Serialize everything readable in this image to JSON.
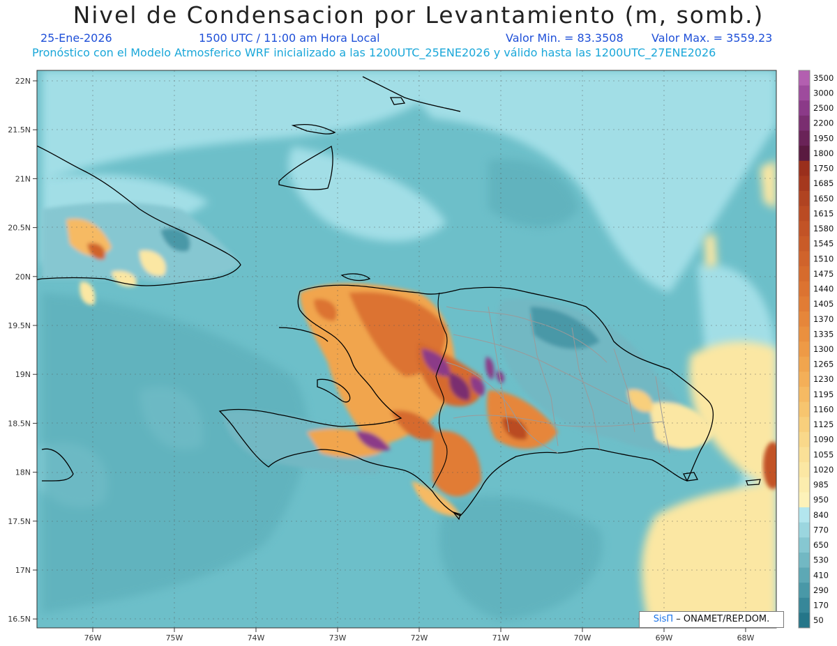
{
  "header": {
    "title": "Nivel de Condensacion por Levantamiento (m, somb.)",
    "date": "25-Ene-2026",
    "time": "1500 UTC / 11:00 am Hora Local",
    "min_value": "Valor Min. = 83.3508",
    "max_value": "Valor Max. = 3559.23",
    "forecast": "Pronóstico con el Modelo Atmosferico WRF inicializado a las 1200UTC_25ENE2026 y válido hasta las  1200UTC_27ENE2026"
  },
  "map": {
    "lat_ticks": [
      "22N",
      "21.5N",
      "21N",
      "20.5N",
      "20N",
      "19.5N",
      "19N",
      "18.5N",
      "18N",
      "17.5N",
      "17N",
      "16.5N"
    ],
    "lon_ticks": [
      "76W",
      "75W",
      "74W",
      "73W",
      "72W",
      "71W",
      "70W",
      "69W",
      "68W"
    ],
    "lon_range": [
      -76.75,
      -67.65
    ],
    "lat_range": [
      16.45,
      22.1
    ],
    "ocean_color": "#6dbfc9",
    "shallow_color": "#a8e2ea"
  },
  "colorbar": {
    "levels": [
      "3500",
      "3000",
      "2500",
      "2200",
      "1950",
      "1800",
      "1750",
      "1685",
      "1650",
      "1615",
      "1580",
      "1545",
      "1510",
      "1475",
      "1440",
      "1405",
      "1370",
      "1335",
      "1300",
      "1265",
      "1230",
      "1195",
      "1160",
      "1125",
      "1090",
      "1055",
      "1020",
      "985",
      "950",
      "840",
      "770",
      "650",
      "530",
      "410",
      "290",
      "170",
      "50"
    ],
    "colors": [
      "#b35fb0",
      "#9e4b9d",
      "#8b3a88",
      "#7a2e70",
      "#6a2358",
      "#5a1a40",
      "#9a2f1c",
      "#a5381e",
      "#b04321",
      "#ba4b23",
      "#c25326",
      "#c95b28",
      "#d0632b",
      "#d66b2d",
      "#dc7331",
      "#e17c35",
      "#e6863a",
      "#ea903f",
      "#ee9a46",
      "#f1a54e",
      "#f4af58",
      "#f6ba63",
      "#f7c56f",
      "#f8cf7c",
      "#f9d88a",
      "#fae097",
      "#fbe7a3",
      "#fcedae",
      "#fdf2b9",
      "#b3e6ee",
      "#9bd6df",
      "#86c7d1",
      "#72b8c3",
      "#5da8b5",
      "#4998a7",
      "#378799",
      "#257689"
    ]
  },
  "credit": {
    "logo": "SisΠ",
    "text": "– ONAMET/REP.DOM."
  }
}
